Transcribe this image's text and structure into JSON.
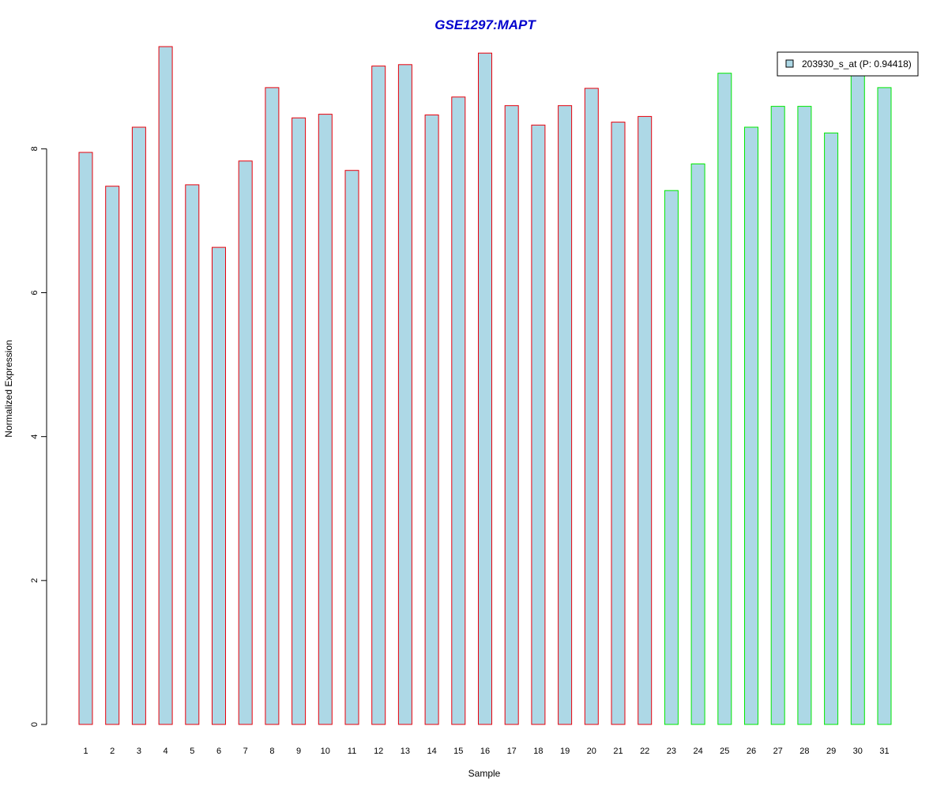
{
  "chart_data": {
    "type": "bar",
    "title": "GSE1297:MAPT",
    "xlabel": "Sample",
    "ylabel": "Normalized Expression",
    "categories": [
      "1",
      "2",
      "3",
      "4",
      "5",
      "6",
      "7",
      "8",
      "9",
      "10",
      "11",
      "12",
      "13",
      "14",
      "15",
      "16",
      "17",
      "18",
      "19",
      "20",
      "21",
      "22",
      "23",
      "24",
      "25",
      "26",
      "27",
      "28",
      "29",
      "30",
      "31"
    ],
    "series": [
      {
        "name": "203930_s_at (P: 0.94418)",
        "values": [
          7.95,
          7.48,
          8.3,
          9.42,
          7.5,
          6.63,
          7.83,
          8.85,
          8.43,
          8.48,
          7.7,
          9.15,
          9.17,
          8.47,
          8.72,
          9.33,
          8.6,
          8.33,
          8.6,
          8.84,
          8.37,
          8.45,
          7.42,
          7.79,
          9.05,
          8.3,
          8.59,
          8.59,
          8.22,
          9.1,
          8.85
        ]
      }
    ],
    "groups": [
      {
        "samples": [
          1,
          2,
          3,
          4,
          5,
          6,
          7,
          8,
          9,
          10,
          11,
          12,
          13,
          14,
          15,
          16,
          17,
          18,
          19,
          20,
          21,
          22
        ],
        "border_color": "#e8000b"
      },
      {
        "samples": [
          23,
          24,
          25,
          26,
          27,
          28,
          29,
          30,
          31
        ],
        "border_color": "#00e800"
      }
    ],
    "y_ticks": [
      0,
      2,
      4,
      6,
      8
    ],
    "ylim": [
      0,
      9.42
    ],
    "grid": false,
    "legend_position": "top-right",
    "colors": {
      "bar_fill": "#add8e6",
      "title": "#0000cd",
      "axis": "#000000"
    }
  }
}
